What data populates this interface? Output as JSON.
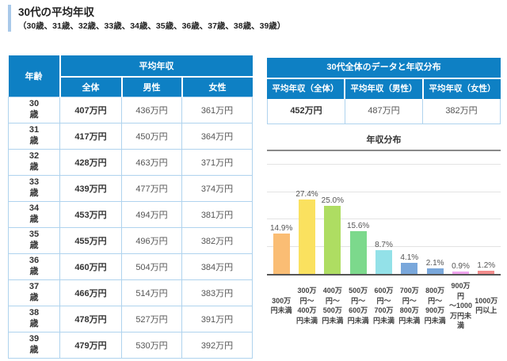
{
  "page": {
    "title": "30代の平均年収",
    "subtitle": "（30歳、31歳、32歳、33歳、34歳、35歳、36歳、37歳、38歳、39歳）"
  },
  "age_table": {
    "col_age": "年齢",
    "col_avg_income": "平均年収",
    "col_overall": "全体",
    "col_male": "男性",
    "col_female": "女性",
    "rows": [
      {
        "age_label": "30\n歳",
        "overall": "407万円",
        "male": "436万円",
        "female": "361万円"
      },
      {
        "age_label": "31\n歳",
        "overall": "417万円",
        "male": "450万円",
        "female": "364万円"
      },
      {
        "age_label": "32\n歳",
        "overall": "428万円",
        "male": "463万円",
        "female": "371万円"
      },
      {
        "age_label": "33\n歳",
        "overall": "439万円",
        "male": "477万円",
        "female": "374万円"
      },
      {
        "age_label": "34\n歳",
        "overall": "453万円",
        "male": "494万円",
        "female": "381万円"
      },
      {
        "age_label": "35\n歳",
        "overall": "455万円",
        "male": "496万円",
        "female": "382万円"
      },
      {
        "age_label": "36\n歳",
        "overall": "460万円",
        "male": "504万円",
        "female": "384万円"
      },
      {
        "age_label": "37\n歳",
        "overall": "466万円",
        "male": "514万円",
        "female": "383万円"
      },
      {
        "age_label": "38\n歳",
        "overall": "478万円",
        "male": "527万円",
        "female": "391万円"
      },
      {
        "age_label": "39\n歳",
        "overall": "479万円",
        "male": "530万円",
        "female": "392万円"
      }
    ]
  },
  "summary_panel": {
    "title": "30代全体のデータと年収分布",
    "headers": [
      "平均年収（全体）",
      "平均年収（男性）",
      "平均年収（女性）"
    ],
    "values": [
      "452万円",
      "487万円",
      "382万円"
    ]
  },
  "chart_data": {
    "type": "bar",
    "title": "年収分布",
    "categories": [
      "300万\n円未満",
      "300万\n円～\n400万\n円未満",
      "400万\n円～\n500万\n円未満",
      "500万\n円～\n600万\n円未満",
      "600万\n円～\n700万\n円未満",
      "700万\n円～\n800万\n円未満",
      "800万\n円～\n900万\n円未満",
      "900万円\n～1000\n万円未\n満",
      "1000万\n円以上"
    ],
    "values": [
      14.9,
      27.4,
      25.0,
      15.6,
      8.7,
      4.1,
      2.1,
      0.9,
      1.2
    ],
    "value_labels": [
      "14.9%",
      "27.4%",
      "25.0%",
      "15.6%",
      "8.7%",
      "4.1%",
      "2.1%",
      "0.9%",
      "1.2%"
    ],
    "bar_colors": [
      "#FABD74",
      "#FAE15F",
      "#AEDD62",
      "#7CD98C",
      "#93E1E8",
      "#79A7DB",
      "#79A7DB",
      "#EFA3ED",
      "#F28B8B"
    ],
    "xlabel": "",
    "ylabel": "",
    "ylim": [
      0,
      45
    ],
    "gridlines": [
      10,
      20,
      30,
      40
    ],
    "legend": "none"
  },
  "colors": {
    "header_blue": "#0E80C4",
    "table_border": "#AFD3EE",
    "accent_bar": "#A9C9E9"
  }
}
